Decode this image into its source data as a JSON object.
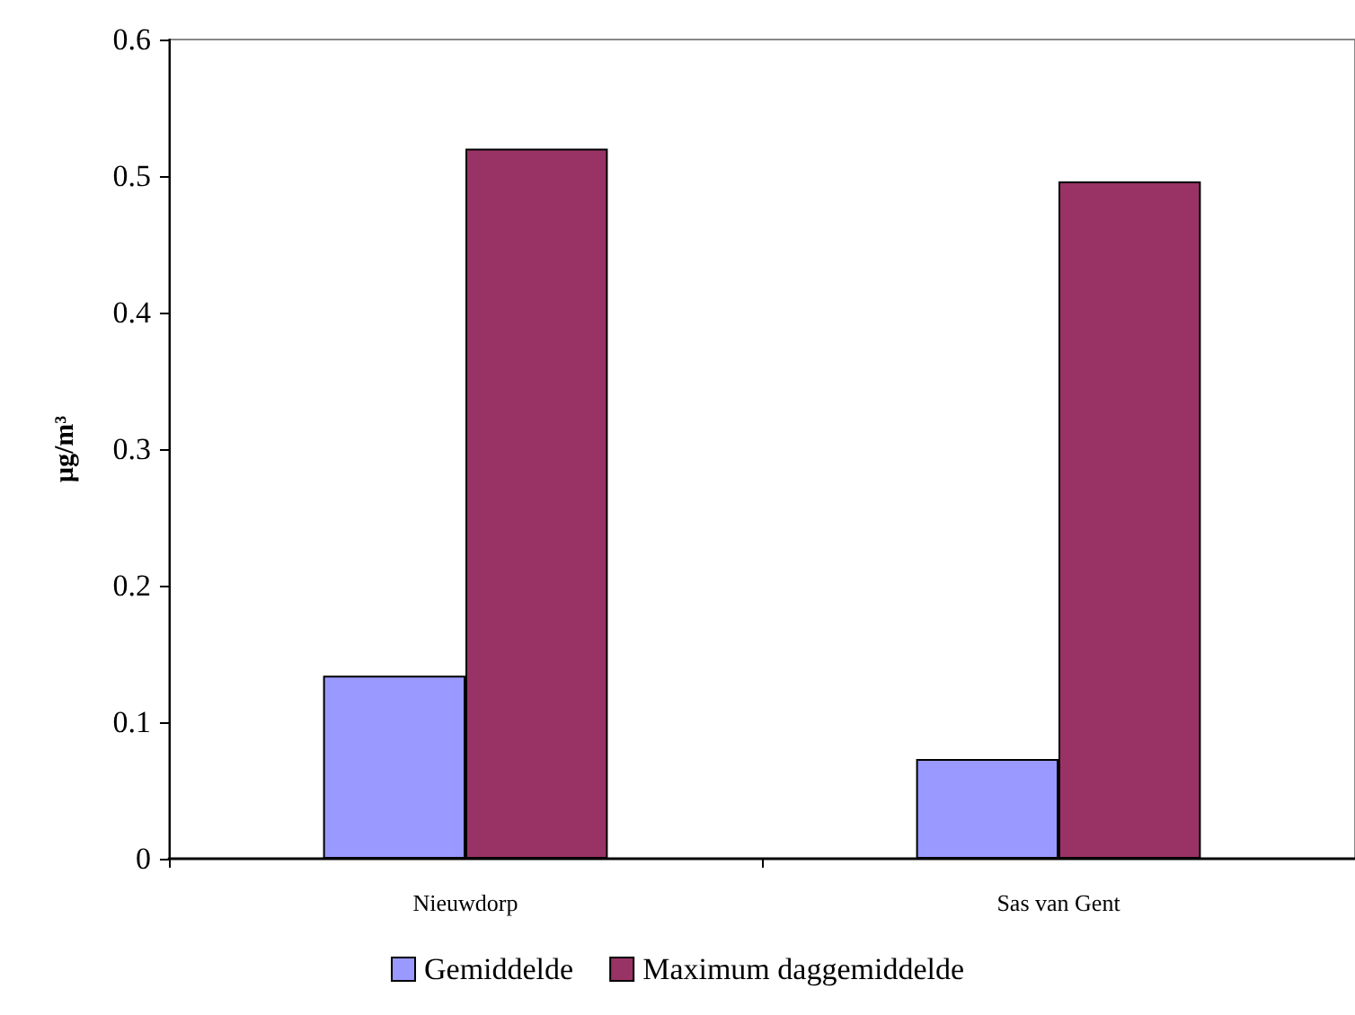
{
  "chart_data": {
    "type": "bar",
    "ylabel": "µg/m³",
    "categories": [
      "Nieuwdorp",
      "Sas van Gent"
    ],
    "series": [
      {
        "name": "Gemiddelde",
        "color": "#9999ff",
        "values": [
          0.134,
          0.073
        ]
      },
      {
        "name": "Maximum daggemiddelde",
        "color": "#993366",
        "values": [
          0.52,
          0.496
        ]
      }
    ],
    "ylim": [
      0,
      0.6
    ],
    "yticks": [
      0,
      0.1,
      0.2,
      0.3,
      0.4,
      0.5,
      0.6
    ],
    "grid": false,
    "legend": "bottom"
  }
}
